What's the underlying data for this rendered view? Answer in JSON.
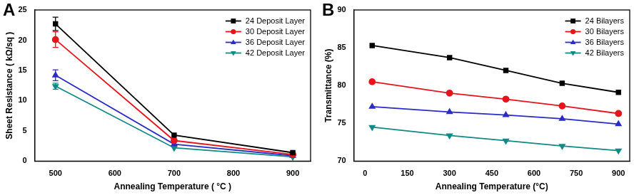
{
  "chart_data": [
    {
      "type": "line",
      "title": "A",
      "x_label": "Annealing Temperature ( °C )",
      "y_label": "Sheet Resistance ( kΩ/sq )",
      "x": [
        500,
        700,
        900
      ],
      "xlim": [
        465,
        930
      ],
      "xticks": [
        500,
        600,
        700,
        800,
        900
      ],
      "ylim": [
        0,
        25
      ],
      "yticks": [
        0,
        5,
        10,
        15,
        20,
        25
      ],
      "grid": false,
      "legend": "upper right",
      "series": [
        {
          "name": "24 Deposit Layer",
          "color": "#000000",
          "marker": "square",
          "values": [
            22.7,
            4.3,
            1.4
          ],
          "errors": [
            1.1,
            null,
            null
          ]
        },
        {
          "name": "30 Deposit Layer",
          "color": "#e8141b",
          "marker": "circle",
          "values": [
            20.1,
            3.4,
            1.1
          ],
          "errors": [
            1.3,
            null,
            null
          ]
        },
        {
          "name": "36 Deposit Layer",
          "color": "#2b2bc7",
          "marker": "triangle",
          "values": [
            14.2,
            2.8,
            0.9
          ],
          "errors": [
            0.9,
            null,
            null
          ]
        },
        {
          "name": "42 Deposit Layer",
          "color": "#0f8a86",
          "marker": "triangle_down",
          "values": [
            12.4,
            2.2,
            0.7
          ],
          "errors": [
            0.5,
            null,
            null
          ]
        }
      ]
    },
    {
      "type": "line",
      "title": "B",
      "x_label": "Annealing Temperature (°C)",
      "y_label": "Transmittance (%)",
      "x": [
        25,
        300,
        500,
        700,
        900
      ],
      "xlim": [
        -40,
        940
      ],
      "xticks": [
        0,
        150,
        300,
        450,
        600,
        750,
        900
      ],
      "ylim": [
        70,
        90
      ],
      "yticks": [
        70,
        75,
        80,
        85,
        90
      ],
      "grid": false,
      "legend": "upper right",
      "series": [
        {
          "name": "24 Bilayers",
          "color": "#000000",
          "marker": "square",
          "values": [
            85.3,
            83.7,
            82.0,
            80.3,
            79.1
          ]
        },
        {
          "name": "30 Bilayers",
          "color": "#e8141b",
          "marker": "circle",
          "values": [
            80.5,
            79.0,
            78.2,
            77.3,
            76.3
          ]
        },
        {
          "name": "36 Bilayers",
          "color": "#2b2bc7",
          "marker": "triangle",
          "values": [
            77.2,
            76.5,
            76.1,
            75.6,
            74.9
          ]
        },
        {
          "name": "42 Bilayers",
          "color": "#0f8a86",
          "marker": "triangle_down",
          "values": [
            74.5,
            73.4,
            72.7,
            72.0,
            71.4
          ]
        }
      ]
    }
  ]
}
